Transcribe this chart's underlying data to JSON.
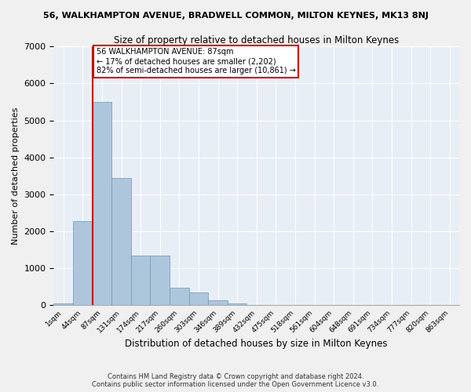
{
  "title_top": "56, WALKHAMPTON AVENUE, BRADWELL COMMON, MILTON KEYNES, MK13 8NJ",
  "title_main": "Size of property relative to detached houses in Milton Keynes",
  "xlabel": "Distribution of detached houses by size in Milton Keynes",
  "ylabel": "Number of detached properties",
  "annotation_line1": "56 WALKHAMPTON AVENUE: 87sqm",
  "annotation_line2": "← 17% of detached houses are smaller (2,202)",
  "annotation_line3": "82% of semi-detached houses are larger (10,861) →",
  "footer_line1": "Contains HM Land Registry data © Crown copyright and database right 2024.",
  "footer_line2": "Contains public sector information licensed under the Open Government Licence v3.0.",
  "categories": [
    "1sqm",
    "44sqm",
    "87sqm",
    "131sqm",
    "174sqm",
    "217sqm",
    "260sqm",
    "303sqm",
    "346sqm",
    "389sqm",
    "432sqm",
    "475sqm",
    "518sqm",
    "561sqm",
    "604sqm",
    "648sqm",
    "691sqm",
    "734sqm",
    "777sqm",
    "820sqm",
    "863sqm"
  ],
  "values": [
    50,
    2280,
    5500,
    3450,
    1350,
    1350,
    470,
    340,
    130,
    50,
    0,
    0,
    0,
    0,
    0,
    0,
    0,
    0,
    0,
    0,
    0
  ],
  "bar_color": "#aec6dc",
  "bar_edge_color": "#6699bb",
  "highlight_color": "#cc0000",
  "annotation_box_color": "#cc0000",
  "background_color": "#e8eef5",
  "grid_color": "#ffffff",
  "fig_background": "#f0f0f0",
  "ylim": [
    0,
    7000
  ],
  "yticks": [
    0,
    1000,
    2000,
    3000,
    4000,
    5000,
    6000,
    7000
  ]
}
